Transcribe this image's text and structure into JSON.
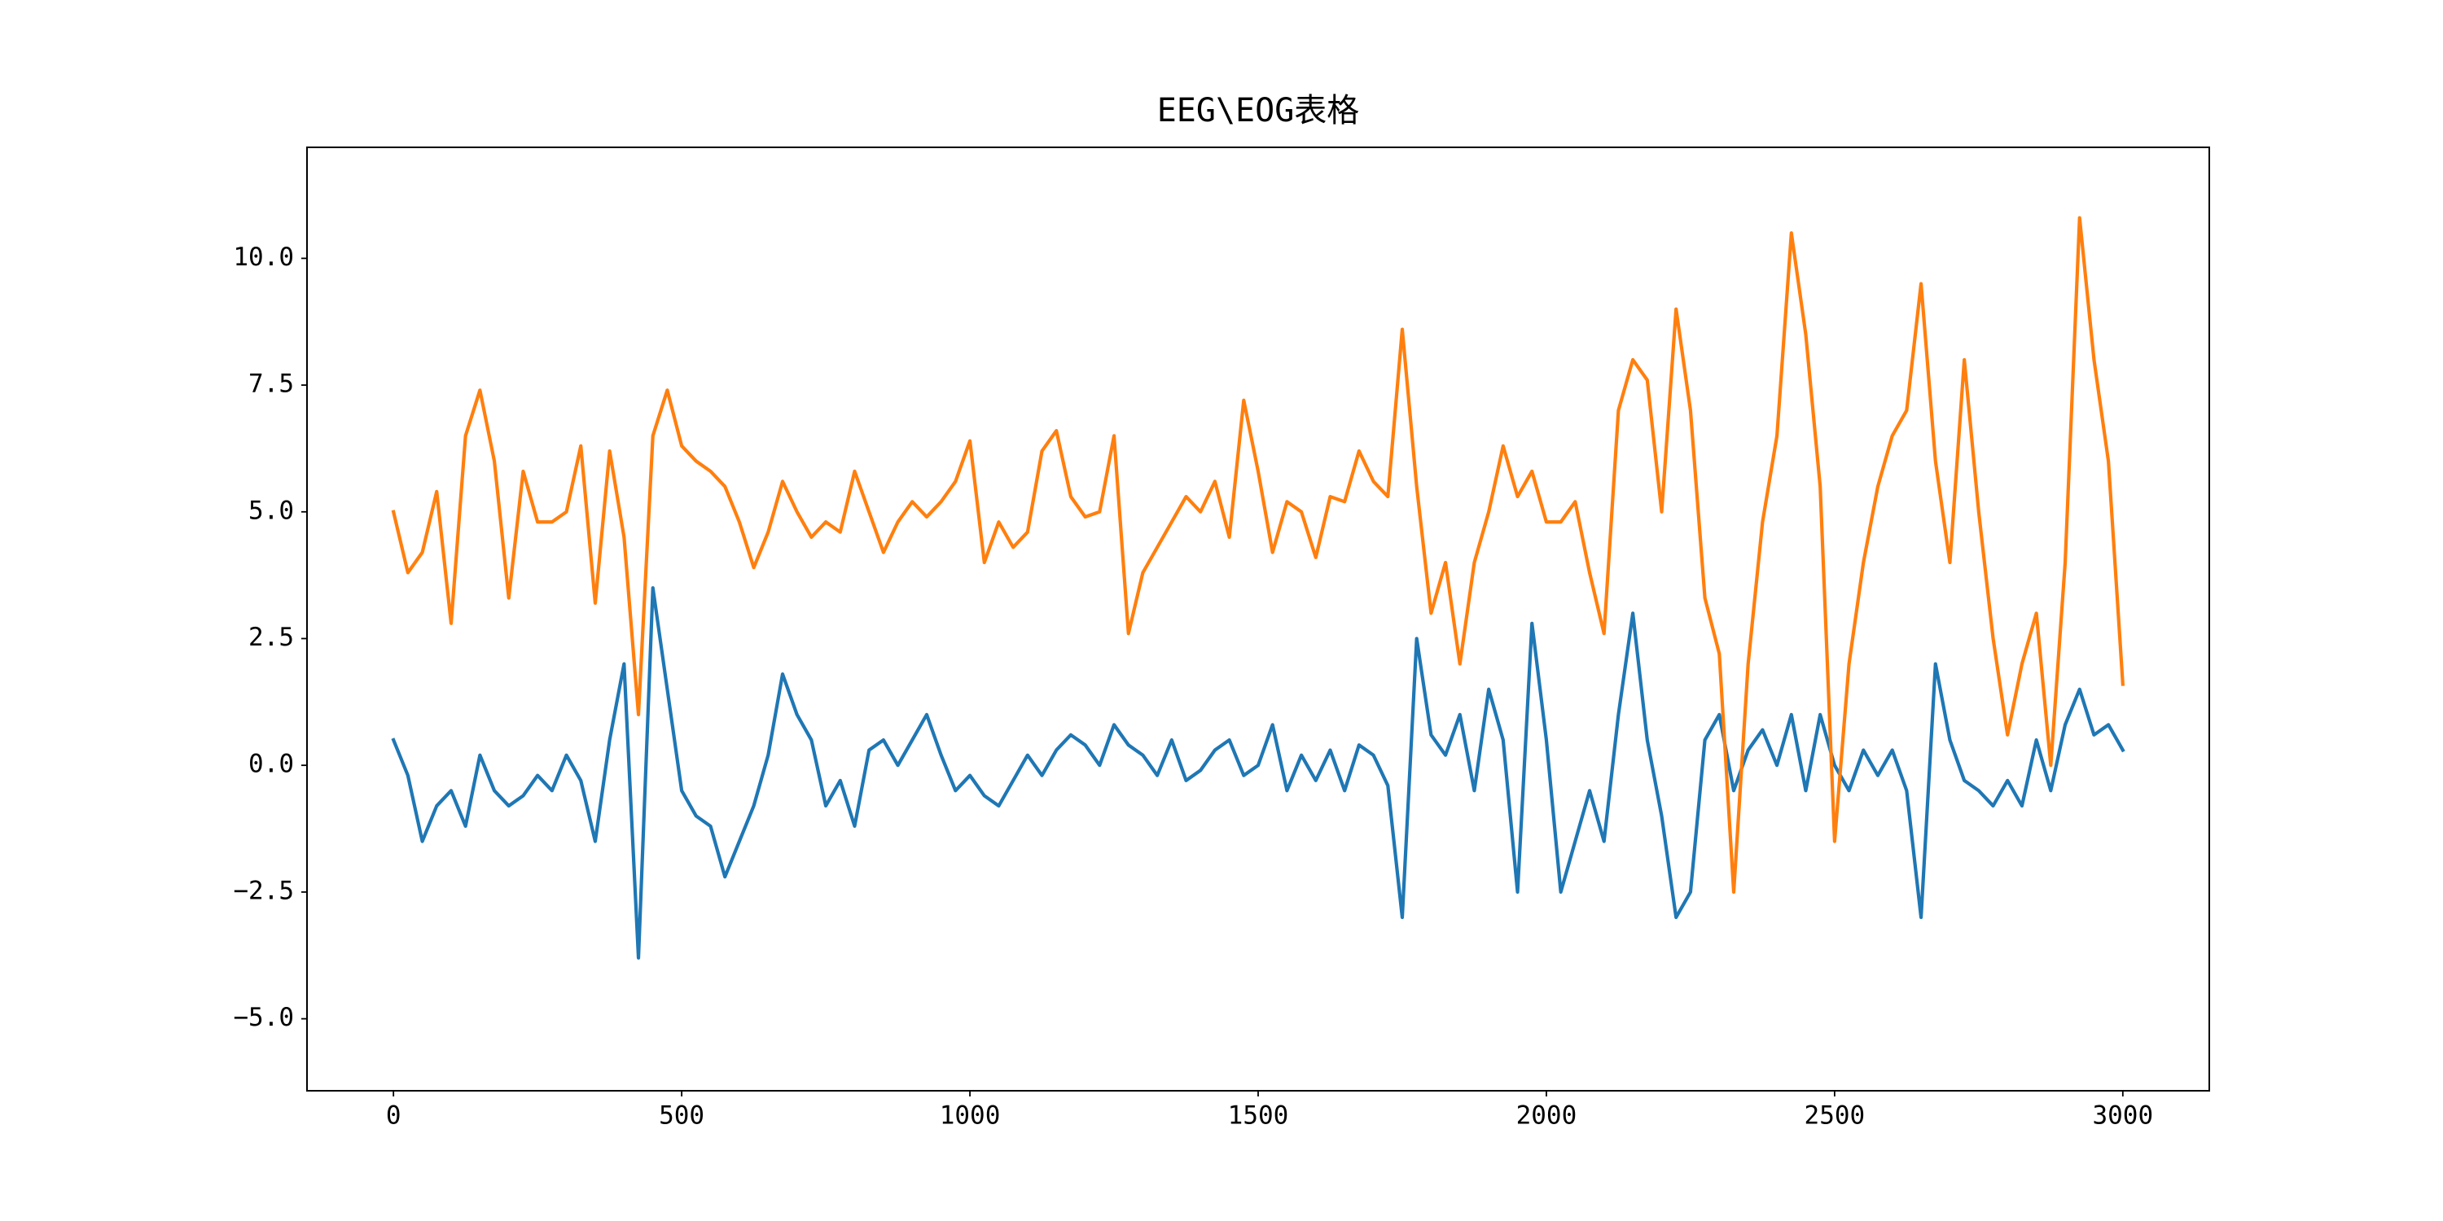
{
  "chart_data": {
    "type": "line",
    "title": "EEG\\EOG表格",
    "x": [
      0,
      25,
      50,
      75,
      100,
      125,
      150,
      175,
      200,
      225,
      250,
      275,
      300,
      325,
      350,
      375,
      400,
      425,
      450,
      475,
      500,
      525,
      550,
      575,
      600,
      625,
      650,
      675,
      700,
      725,
      750,
      775,
      800,
      825,
      850,
      875,
      900,
      925,
      950,
      975,
      1000,
      1025,
      1050,
      1075,
      1100,
      1125,
      1150,
      1175,
      1200,
      1225,
      1250,
      1275,
      1300,
      1325,
      1350,
      1375,
      1400,
      1425,
      1450,
      1475,
      1500,
      1525,
      1550,
      1575,
      1600,
      1625,
      1650,
      1675,
      1700,
      1725,
      1750,
      1775,
      1800,
      1825,
      1850,
      1875,
      1900,
      1925,
      1950,
      1975,
      2000,
      2025,
      2050,
      2075,
      2100,
      2125,
      2150,
      2175,
      2200,
      2225,
      2250,
      2275,
      2300,
      2325,
      2350,
      2375,
      2400,
      2425,
      2450,
      2475,
      2500,
      2525,
      2550,
      2575,
      2600,
      2625,
      2650,
      2675,
      2700,
      2725,
      2750,
      2775,
      2800,
      2825,
      2850,
      2875,
      2900,
      2925,
      2950,
      2975,
      3000
    ],
    "series": [
      {
        "color": "#1f77b4",
        "values": [
          0.5,
          -0.2,
          -1.5,
          -0.8,
          -0.5,
          -1.2,
          0.2,
          -0.5,
          -0.8,
          -0.6,
          -0.2,
          -0.5,
          0.2,
          -0.3,
          -1.5,
          0.5,
          2.0,
          -3.8,
          3.5,
          1.5,
          -0.5,
          -1.0,
          -1.2,
          -2.2,
          -1.5,
          -0.8,
          0.2,
          1.8,
          1.0,
          0.5,
          -0.8,
          -0.3,
          -1.2,
          0.3,
          0.5,
          0.0,
          0.5,
          1.0,
          0.2,
          -0.5,
          -0.2,
          -0.6,
          -0.8,
          -0.3,
          0.2,
          -0.2,
          0.3,
          0.6,
          0.4,
          0.0,
          0.8,
          0.4,
          0.2,
          -0.2,
          0.5,
          -0.3,
          -0.1,
          0.3,
          0.5,
          -0.2,
          0.0,
          0.8,
          -0.5,
          0.2,
          -0.3,
          0.3,
          -0.5,
          0.4,
          0.2,
          -0.4,
          -3.0,
          2.5,
          0.6,
          0.2,
          1.0,
          -0.5,
          1.5,
          0.5,
          -2.5,
          2.8,
          0.5,
          -2.5,
          -1.5,
          -0.5,
          -1.5,
          1.0,
          3.0,
          0.5,
          -1.0,
          -3.0,
          -2.5,
          0.5,
          1.0,
          -0.5,
          0.3,
          0.7,
          0.0,
          1.0,
          -0.5,
          1.0,
          0.0,
          -0.5,
          0.3,
          -0.2,
          0.3,
          -0.5,
          -3.0,
          2.0,
          0.5,
          -0.3,
          -0.5,
          -0.8,
          -0.3,
          -0.8,
          0.5,
          -0.5,
          0.8,
          1.5,
          0.6,
          0.8,
          0.3
        ]
      },
      {
        "color": "#ff7f0e",
        "values": [
          5.0,
          3.8,
          4.2,
          5.4,
          2.8,
          6.5,
          7.4,
          6.0,
          3.3,
          5.8,
          4.8,
          4.8,
          5.0,
          6.3,
          3.2,
          6.2,
          4.5,
          1.0,
          6.5,
          7.4,
          6.3,
          6.0,
          5.8,
          5.5,
          4.8,
          3.9,
          4.6,
          5.6,
          5.0,
          4.5,
          4.8,
          4.6,
          5.8,
          5.0,
          4.2,
          4.8,
          5.2,
          4.9,
          5.2,
          5.6,
          6.4,
          4.0,
          4.8,
          4.3,
          4.6,
          6.2,
          6.6,
          5.3,
          4.9,
          5.0,
          6.5,
          2.6,
          3.8,
          4.3,
          4.8,
          5.3,
          5.0,
          5.6,
          4.5,
          7.2,
          5.8,
          4.2,
          5.2,
          5.0,
          4.1,
          5.3,
          5.2,
          6.2,
          5.6,
          5.3,
          8.6,
          5.5,
          3.0,
          4.0,
          2.0,
          4.0,
          5.0,
          6.3,
          5.3,
          5.8,
          4.8,
          4.8,
          5.2,
          3.8,
          2.6,
          7.0,
          8.0,
          7.6,
          5.0,
          9.0,
          7.0,
          3.3,
          2.2,
          -2.5,
          2.0,
          4.8,
          6.5,
          10.5,
          8.5,
          5.5,
          -1.5,
          2.0,
          4.0,
          5.5,
          6.5,
          7.0,
          9.5,
          6.0,
          4.0,
          8.0,
          5.0,
          2.5,
          0.6,
          2.0,
          3.0,
          0.0,
          4.0,
          10.8,
          8.0,
          6.0,
          1.6
        ]
      }
    ],
    "xlim": [
      -150,
      3150
    ],
    "xticks": [
      0,
      500,
      1000,
      1500,
      2000,
      2500,
      3000
    ],
    "ylim": [
      -6.42,
      12.19
    ],
    "yticks": [
      {
        "value": -5.0,
        "label": "−5.0"
      },
      {
        "value": -2.5,
        "label": "−2.5"
      },
      {
        "value": 0,
        "label": "0.0"
      },
      {
        "value": 2.5,
        "label": "2.5"
      },
      {
        "value": 5.0,
        "label": "5.0"
      },
      {
        "value": 7.5,
        "label": "7.5"
      },
      {
        "value": 10.0,
        "label": "10.0"
      }
    ]
  }
}
